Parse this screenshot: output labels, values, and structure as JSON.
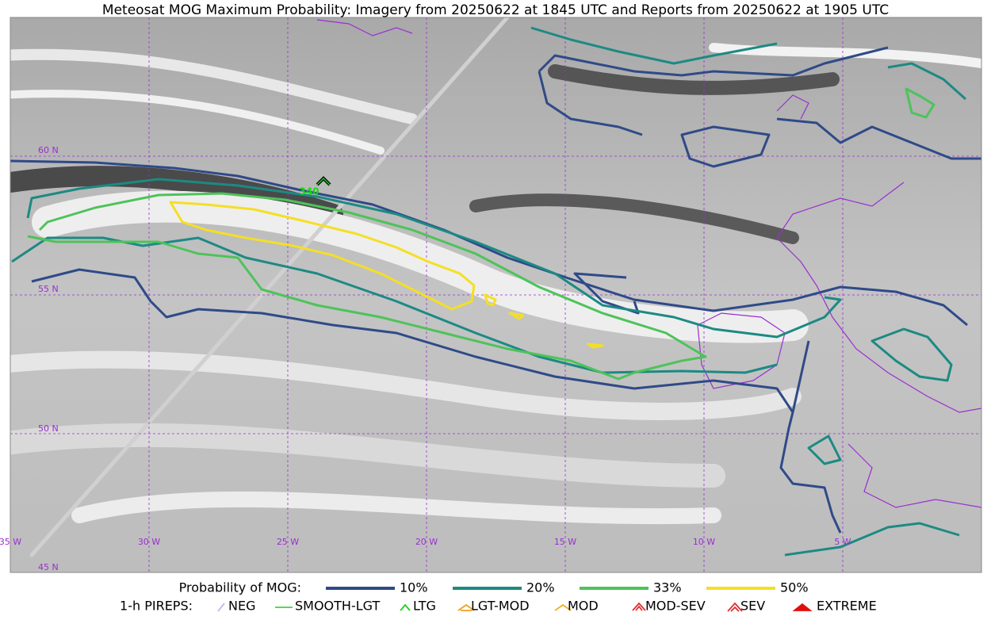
{
  "title": "Meteosat MOG Maximum Probability: Imagery from 20250622 at 1845 UTC and Reports from 20250622 at 1905 UTC",
  "latitude_labels": [
    "60 N",
    "55 N",
    "50 N",
    "45 N"
  ],
  "longitude_labels": [
    "35 W",
    "30 W",
    "25 W",
    "20 W",
    "15 W",
    "10 W",
    "5 W"
  ],
  "report_label": "340",
  "probability_legend": {
    "title": "Probability of MOG:",
    "items": [
      {
        "label": "10%",
        "color": "#2f4a88"
      },
      {
        "label": "20%",
        "color": "#1c8a83"
      },
      {
        "label": "33%",
        "color": "#4dc35a"
      },
      {
        "label": "50%",
        "color": "#f4df25"
      }
    ]
  },
  "pirep_legend": {
    "title": "1-h PIREPS:",
    "items": [
      {
        "label": "NEG",
        "color": "#b8b8f0"
      },
      {
        "label": "SMOOTH-LGT",
        "color": "#3bd43b"
      },
      {
        "label": "LTG",
        "color": "#19d419"
      },
      {
        "label": "LGT-MOD",
        "color": "#f0a020"
      },
      {
        "label": "MOD",
        "color": "#f0b020"
      },
      {
        "label": "MOD-SEV",
        "color": "#e03030"
      },
      {
        "label": "SEV",
        "color": "#e03030"
      },
      {
        "label": "EXTREME",
        "color": "#e01010"
      }
    ]
  }
}
